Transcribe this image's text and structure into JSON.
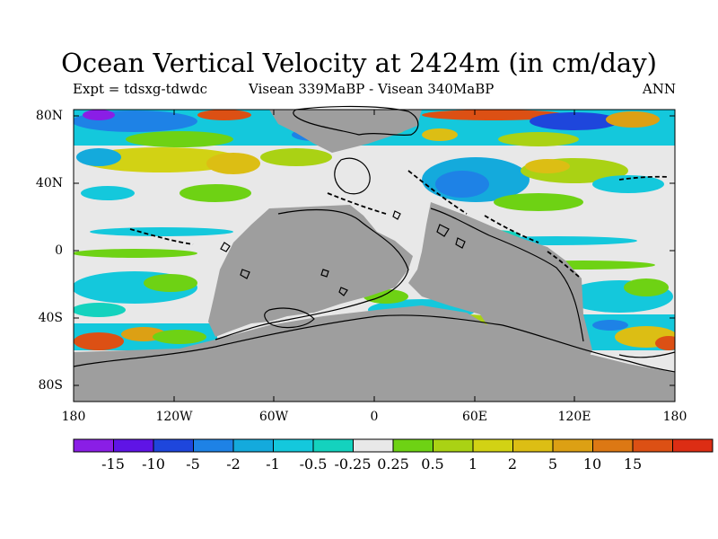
{
  "title": "Ocean Vertical Velocity at 2424m (in cm/day)",
  "experiment": "Expt = tdsxg-tdwdc",
  "comparison": "Visean 339MaBP - Visean   340MaBP",
  "period": "ANN",
  "y_ticks": [
    "80N",
    "40N",
    "0",
    "40S",
    "80S"
  ],
  "x_ticks": [
    "180",
    "120W",
    "60W",
    "0",
    "60E",
    "120E",
    "180"
  ],
  "colors": {
    "land": "#9e9e9e",
    "neutral": "#e8e8e8",
    "coast": "#000000"
  },
  "legend": {
    "colors": [
      "#8a1ee6",
      "#5f14e6",
      "#1e46dc",
      "#1e82e6",
      "#14aadc",
      "#14c8dc",
      "#14d2be",
      "#e8e8e8",
      "#6ed214",
      "#aad214",
      "#d2d214",
      "#dcbe14",
      "#dca014",
      "#dc7814",
      "#dc5014",
      "#dc2d14"
    ],
    "labels": [
      "-15",
      "-10",
      "-5",
      "-2",
      "-1",
      "-0.5",
      "-0.25",
      "0.25",
      "0.5",
      "1",
      "2",
      "5",
      "10",
      "15"
    ]
  }
}
